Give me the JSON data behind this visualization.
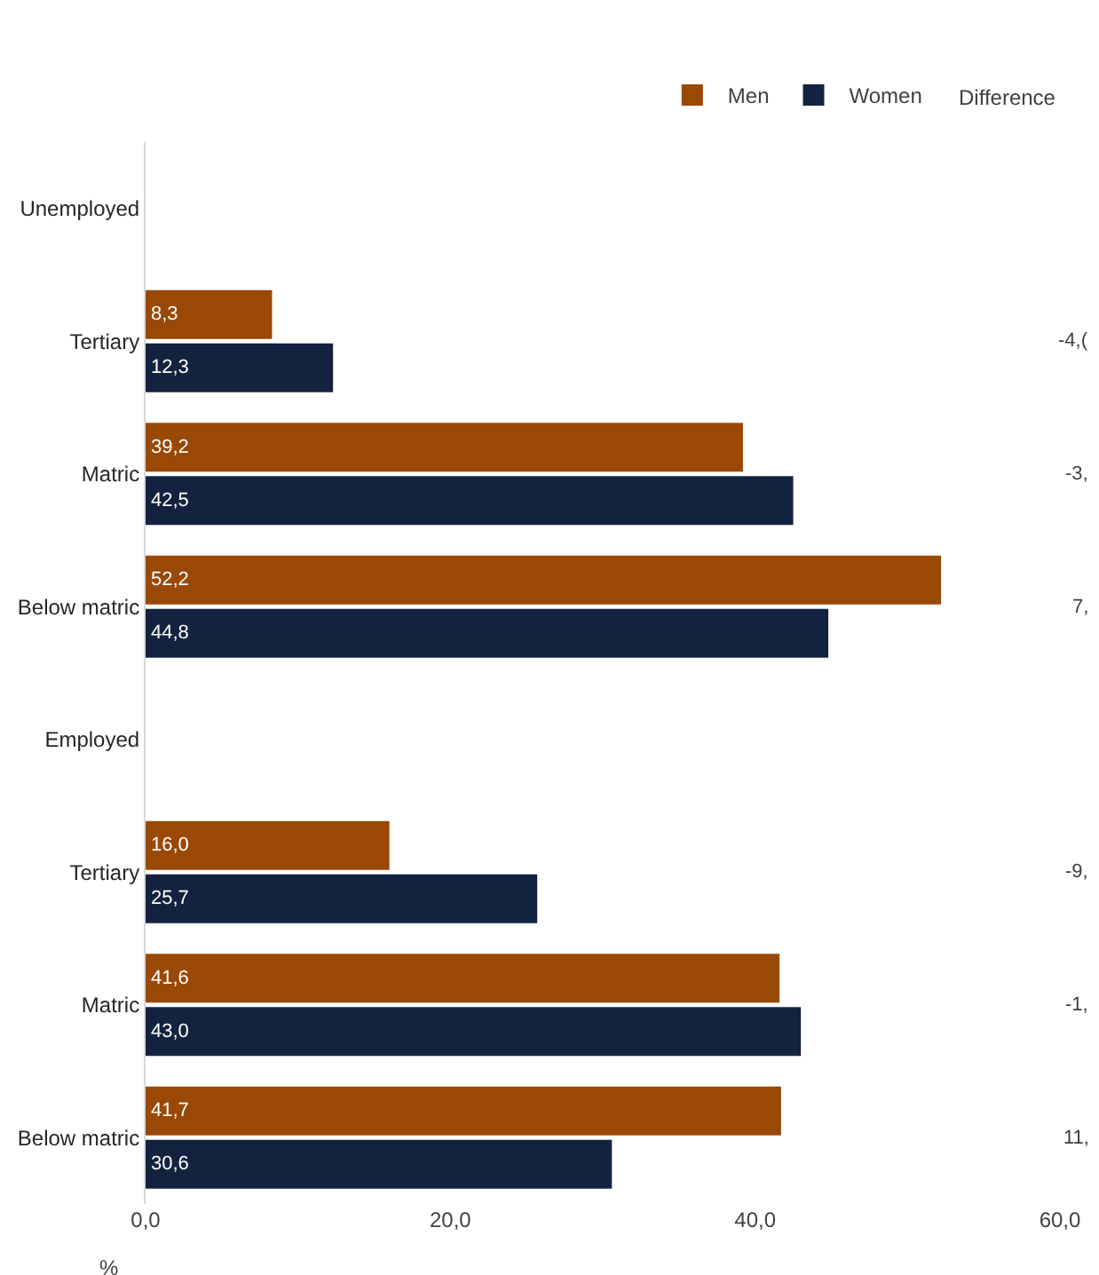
{
  "chart_data": {
    "type": "bar",
    "orientation": "horizontal",
    "xlabel": "%",
    "categories": [
      "Unemployed",
      "Tertiary",
      "Matric",
      "Below matric",
      "Employed",
      "Tertiary",
      "Matric",
      "Below matric"
    ],
    "series": [
      {
        "name": "Men",
        "color": "#9a4806",
        "values": [
          null,
          8.3,
          39.2,
          52.2,
          null,
          16.0,
          41.6,
          41.7
        ]
      },
      {
        "name": "Women",
        "color": "#13233f",
        "values": [
          null,
          12.3,
          42.5,
          44.8,
          null,
          25.7,
          43.0,
          30.6
        ]
      }
    ],
    "value_labels": [
      [
        null,
        "8,3",
        "39,2",
        "52,2",
        null,
        "16,0",
        "41,6",
        "41,7"
      ],
      [
        null,
        "12,3",
        "42,5",
        "44,8",
        null,
        "25,7",
        "43,0",
        "30,6"
      ]
    ],
    "annotations": [
      "Difference",
      "-4,(",
      "-3,",
      "7,",
      "-9,",
      "-1,",
      "11,"
    ],
    "xlim": [
      0,
      60
    ],
    "xticks": [
      {
        "value": 0,
        "label": "0,0"
      },
      {
        "value": 20,
        "label": "20,0"
      },
      {
        "value": 40,
        "label": "40,0"
      },
      {
        "value": 60,
        "label": "60,0"
      }
    ],
    "legend": "top right"
  }
}
